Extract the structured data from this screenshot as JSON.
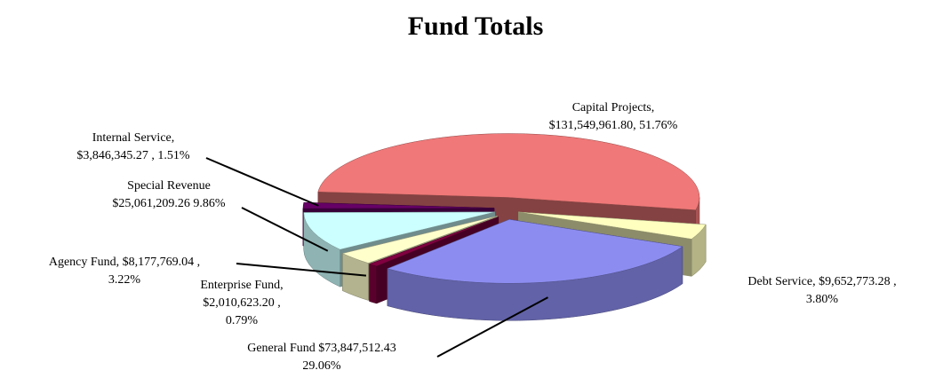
{
  "chart_data": {
    "type": "pie3d",
    "title": "Fund Totals",
    "values": [
      51.76,
      3.8,
      29.06,
      0.79,
      3.22,
      9.86,
      1.51
    ],
    "value_labels": [
      [
        "Capital Projects,",
        "$131,549,961.80, 51.76%"
      ],
      [
        "Debt Service, $9,652,773.28 ,",
        "3.80%"
      ],
      [
        "General Fund $73,847,512.43",
        "29.06%"
      ],
      [
        "Enterprise Fund,",
        "$2,010,623.20 ,",
        "0.79%"
      ],
      [
        "Agency Fund, $8,177,769.04 ,",
        "3.22%"
      ],
      [
        "Special Revenue",
        "$25,061,209.26 9.86%"
      ],
      [
        "Internal Service,",
        "$3,846,345.27 , 1.51%"
      ]
    ],
    "colors": [
      "#f07878",
      "#ffffc0",
      "#8c8cf0",
      "#800040",
      "#ffffcc",
      "#ccffff",
      "#660066"
    ]
  }
}
